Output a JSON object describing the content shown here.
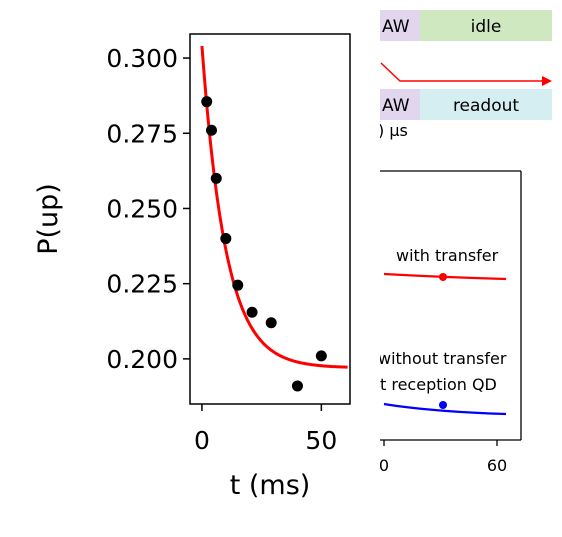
{
  "chart_data": [
    {
      "type": "scatter",
      "title": "",
      "xlabel": "t (ms)",
      "ylabel": "P(up)",
      "xlim": [
        -5,
        62
      ],
      "ylim": [
        0.185,
        0.308
      ],
      "xticks": [
        0,
        50
      ],
      "xtick_labels": [
        "0",
        "50"
      ],
      "yticks": [
        0.2,
        0.225,
        0.25,
        0.275,
        0.3
      ],
      "ytick_labels": [
        "0.200",
        "0.225",
        "0.250",
        "0.275",
        "0.300"
      ],
      "grid": false,
      "legend": "none",
      "series": [
        {
          "type": "scatter",
          "color": "#000000",
          "x": [
            2,
            4,
            6,
            10,
            15,
            21,
            29,
            40,
            50
          ],
          "y": [
            0.2855,
            0.276,
            0.26,
            0.24,
            0.2245,
            0.2155,
            0.212,
            0.191,
            0.201
          ]
        },
        {
          "type": "line",
          "color": "#ff0000",
          "fit": {
            "a": 0.197,
            "b": 0.107,
            "tau": 10
          },
          "x_range": [
            0,
            61
          ]
        }
      ]
    },
    {
      "type": "line",
      "title": "",
      "xlabel": "",
      "ylabel": "",
      "xtick_labels": [
        "0",
        "60"
      ],
      "grid": false,
      "annotations": [
        "with transfer",
        "without transfer",
        "t reception QD"
      ],
      "series": [
        {
          "name": "with transfer",
          "color": "#ff0000",
          "marker_x_fraction": 0.45
        },
        {
          "name": "without transfer",
          "color": "#0000ff",
          "marker_x_fraction": 0.45
        }
      ]
    }
  ],
  "sequence": {
    "row1": {
      "left_label": "AW",
      "right_label": "idle",
      "left_color": "#e1d6ee",
      "right_color": "#cfe8c0"
    },
    "row2": {
      "left_label": "AW",
      "right_label": "readout",
      "left_color": "#e1d6ee",
      "right_color": "#d5eef2"
    },
    "time_label": ") μs",
    "arrow_color": "#ff0000"
  }
}
